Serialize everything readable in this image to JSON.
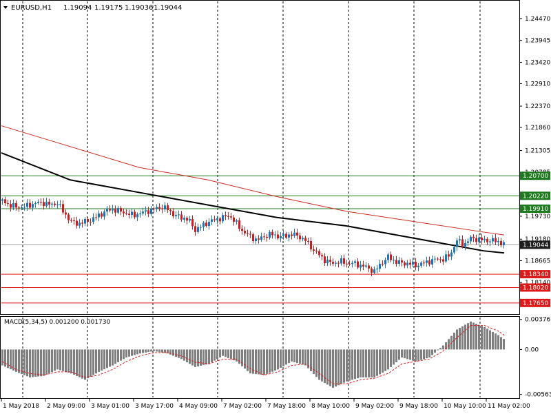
{
  "header": {
    "symbol": "EURUSD,H1",
    "open": "1.19094",
    "high": "1.19175",
    "low": "1.19036",
    "close": "1.19044"
  },
  "indicator_label": "MACD(5,34,5) 0.001200 0.001730",
  "colors": {
    "background": "#ffffff",
    "bull_candle": "#1e73be",
    "bear_candle": "#cc1e1e",
    "ma_slow": "#cc2a1e",
    "ma_fast": "#000000",
    "resistance": "#1f7a1f",
    "support": "#dd1a1a",
    "macd_bars": "#7f7f7f",
    "macd_signal": "#dd1a1a",
    "grid": "#000000",
    "price_tag": "#1e1e1e"
  },
  "chart_data": [
    {
      "type": "candlestick",
      "title": "EURUSD,H1",
      "ylim": [
        1.174,
        1.2475
      ],
      "y_ticks": [
        "1.24470",
        "1.23945",
        "1.23420",
        "1.22910",
        "1.22370",
        "1.21860",
        "1.21305",
        "1.20785",
        "1.20260",
        "1.19730",
        "1.19180",
        "1.18665",
        "1.18140"
      ],
      "x_ticks": [
        "1 May 2018",
        "2 May 09:00",
        "3 May 01:00",
        "3 May 17:00",
        "4 May 09:00",
        "7 May 02:00",
        "7 May 18:00",
        "8 May 10:00",
        "9 May 02:00",
        "9 May 18:00",
        "10 May 10:00",
        "11 May 02:00"
      ],
      "current_price": "1.19044",
      "close_path": [
        [
          0,
          1.201
        ],
        [
          10,
          1.2
        ],
        [
          20,
          1.1995
        ],
        [
          30,
          1.1995
        ],
        [
          40,
          1.2
        ],
        [
          50,
          1.2005
        ],
        [
          60,
          1.2005
        ],
        [
          70,
          1.2
        ],
        [
          80,
          1.2005
        ],
        [
          90,
          1.198
        ],
        [
          100,
          1.196
        ],
        [
          110,
          1.1955
        ],
        [
          120,
          1.196
        ],
        [
          130,
          1.1965
        ],
        [
          140,
          1.1975
        ],
        [
          150,
          1.1985
        ],
        [
          160,
          1.199
        ],
        [
          170,
          1.1985
        ],
        [
          180,
          1.198
        ],
        [
          190,
          1.1975
        ],
        [
          200,
          1.198
        ],
        [
          210,
          1.1985
        ],
        [
          220,
          1.199
        ],
        [
          230,
          1.1995
        ],
        [
          240,
          1.199
        ],
        [
          250,
          1.1975
        ],
        [
          260,
          1.197
        ],
        [
          270,
          1.1965
        ],
        [
          280,
          1.194
        ],
        [
          290,
          1.195
        ],
        [
          300,
          1.196
        ],
        [
          310,
          1.1965
        ],
        [
          320,
          1.197
        ],
        [
          330,
          1.1975
        ],
        [
          340,
          1.1955
        ],
        [
          350,
          1.1935
        ],
        [
          360,
          1.1925
        ],
        [
          370,
          1.1915
        ],
        [
          380,
          1.1925
        ],
        [
          390,
          1.193
        ],
        [
          400,
          1.1925
        ],
        [
          410,
          1.1925
        ],
        [
          420,
          1.193
        ],
        [
          430,
          1.1925
        ],
        [
          440,
          1.1915
        ],
        [
          450,
          1.1895
        ],
        [
          460,
          1.188
        ],
        [
          470,
          1.1865
        ],
        [
          480,
          1.186
        ],
        [
          490,
          1.1865
        ],
        [
          500,
          1.186
        ],
        [
          510,
          1.186
        ],
        [
          520,
          1.1855
        ],
        [
          530,
          1.185
        ],
        [
          540,
          1.184
        ],
        [
          550,
          1.186
        ],
        [
          560,
          1.1875
        ],
        [
          570,
          1.1865
        ],
        [
          580,
          1.186
        ],
        [
          590,
          1.186
        ],
        [
          600,
          1.1855
        ],
        [
          610,
          1.186
        ],
        [
          620,
          1.1865
        ],
        [
          630,
          1.187
        ],
        [
          640,
          1.187
        ],
        [
          650,
          1.188
        ],
        [
          660,
          1.1915
        ],
        [
          670,
          1.1905
        ],
        [
          680,
          1.192
        ],
        [
          690,
          1.1918
        ],
        [
          700,
          1.1915
        ],
        [
          710,
          1.1915
        ],
        [
          720,
          1.1912
        ],
        [
          730,
          1.1905
        ]
      ],
      "moving_averages": [
        {
          "name": "slow",
          "color": "#cc2a1e",
          "points": [
            [
              0,
              1.219
            ],
            [
              100,
              1.214
            ],
            [
              200,
              1.209
            ],
            [
              300,
              1.206
            ],
            [
              400,
              1.202
            ],
            [
              500,
              1.1985
            ],
            [
              600,
              1.196
            ],
            [
              700,
              1.1935
            ],
            [
              730,
              1.1928
            ]
          ]
        },
        {
          "name": "fast",
          "color": "#000000",
          "points": [
            [
              0,
              1.2125
            ],
            [
              100,
              1.206
            ],
            [
              200,
              1.203
            ],
            [
              300,
              1.2
            ],
            [
              400,
              1.197
            ],
            [
              500,
              1.195
            ],
            [
              600,
              1.192
            ],
            [
              700,
              1.189
            ],
            [
              730,
              1.1885
            ]
          ]
        }
      ],
      "levels": [
        {
          "value": 1.207,
          "label": "1.20700",
          "kind": "resistance"
        },
        {
          "value": 1.2022,
          "label": "1.20220",
          "kind": "resistance"
        },
        {
          "value": 1.1991,
          "label": "1.19910",
          "kind": "resistance"
        },
        {
          "value": 1.1834,
          "label": "1.18340",
          "kind": "support"
        },
        {
          "value": 1.1802,
          "label": "1.18020",
          "kind": "support"
        },
        {
          "value": 1.1765,
          "label": "1.17650",
          "kind": "support"
        }
      ]
    },
    {
      "type": "bar",
      "title": "MACD(5,34,5) 0.001200 0.001730",
      "ylim": [
        -0.006,
        0.004
      ],
      "y_ticks": [
        "0.003763",
        "0.00",
        "-0.005631"
      ],
      "macd_values": [
        [
          0,
          -0.002
        ],
        [
          20,
          -0.0028
        ],
        [
          40,
          -0.0035
        ],
        [
          60,
          -0.0033
        ],
        [
          80,
          -0.0025
        ],
        [
          100,
          -0.003
        ],
        [
          120,
          -0.0038
        ],
        [
          140,
          -0.0028
        ],
        [
          160,
          -0.002
        ],
        [
          180,
          -0.001
        ],
        [
          200,
          -0.0005
        ],
        [
          220,
          -0.0002
        ],
        [
          240,
          -0.0005
        ],
        [
          260,
          -0.0012
        ],
        [
          280,
          -0.0022
        ],
        [
          300,
          -0.0018
        ],
        [
          320,
          -0.0008
        ],
        [
          340,
          -0.0015
        ],
        [
          360,
          -0.003
        ],
        [
          380,
          -0.0032
        ],
        [
          400,
          -0.0025
        ],
        [
          420,
          -0.0015
        ],
        [
          440,
          -0.002
        ],
        [
          460,
          -0.0038
        ],
        [
          480,
          -0.0048
        ],
        [
          500,
          -0.004
        ],
        [
          520,
          -0.0035
        ],
        [
          540,
          -0.0035
        ],
        [
          560,
          -0.0025
        ],
        [
          580,
          -0.001
        ],
        [
          600,
          -0.0015
        ],
        [
          620,
          -0.001
        ],
        [
          640,
          0.0005
        ],
        [
          660,
          0.0025
        ],
        [
          680,
          0.0035
        ],
        [
          700,
          0.0028
        ],
        [
          720,
          0.0018
        ],
        [
          730,
          0.0012
        ]
      ],
      "signal_values": [
        [
          0,
          -0.0015
        ],
        [
          20,
          -0.0025
        ],
        [
          40,
          -0.003
        ],
        [
          60,
          -0.0032
        ],
        [
          80,
          -0.0028
        ],
        [
          100,
          -0.0028
        ],
        [
          120,
          -0.0035
        ],
        [
          140,
          -0.0032
        ],
        [
          160,
          -0.0025
        ],
        [
          180,
          -0.0015
        ],
        [
          200,
          -0.0008
        ],
        [
          220,
          -0.0004
        ],
        [
          240,
          -0.0004
        ],
        [
          260,
          -0.0008
        ],
        [
          280,
          -0.0016
        ],
        [
          300,
          -0.0018
        ],
        [
          320,
          -0.0012
        ],
        [
          340,
          -0.0012
        ],
        [
          360,
          -0.0024
        ],
        [
          380,
          -0.0032
        ],
        [
          400,
          -0.0028
        ],
        [
          420,
          -0.002
        ],
        [
          440,
          -0.0018
        ],
        [
          460,
          -0.003
        ],
        [
          480,
          -0.0043
        ],
        [
          500,
          -0.0043
        ],
        [
          520,
          -0.0038
        ],
        [
          540,
          -0.0036
        ],
        [
          560,
          -0.003
        ],
        [
          580,
          -0.0018
        ],
        [
          600,
          -0.0015
        ],
        [
          620,
          -0.0012
        ],
        [
          640,
          -0.0002
        ],
        [
          660,
          0.0015
        ],
        [
          680,
          0.003
        ],
        [
          700,
          0.003
        ],
        [
          720,
          0.0023
        ],
        [
          730,
          0.0017
        ]
      ]
    }
  ]
}
